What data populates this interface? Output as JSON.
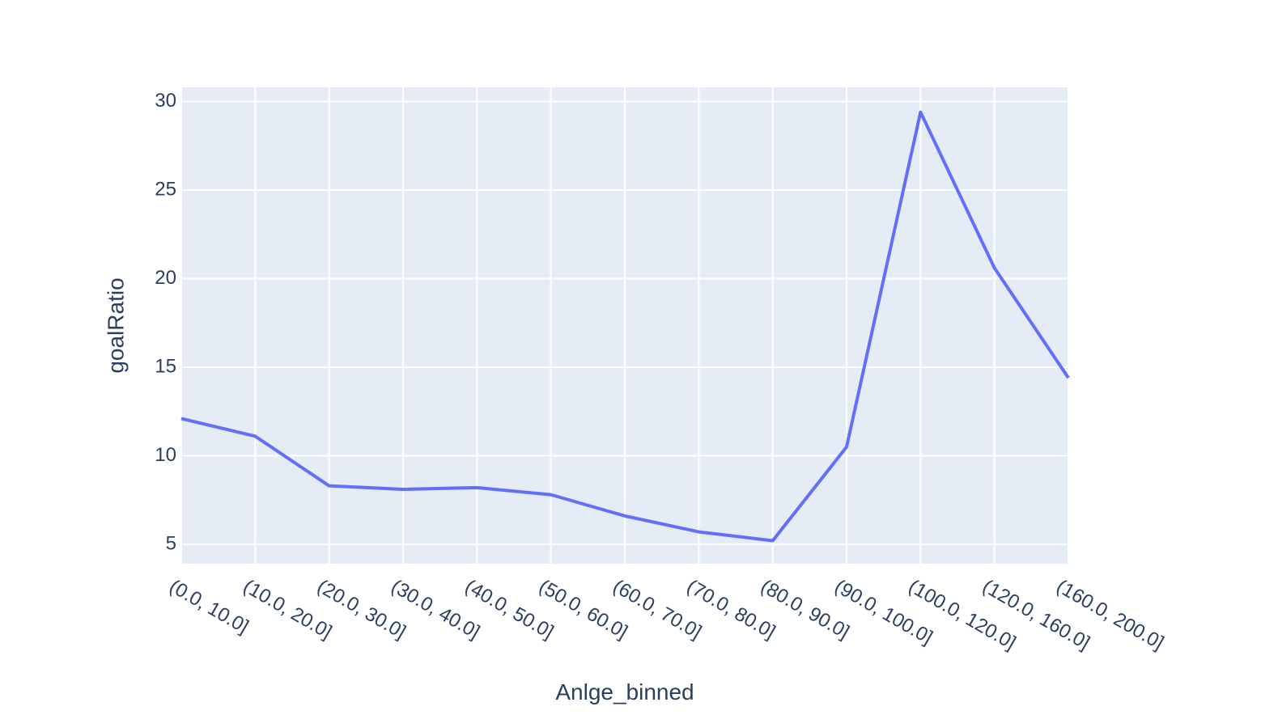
{
  "chart_data": {
    "type": "line",
    "title": "",
    "xlabel": "Anlge_binned",
    "ylabel": "goalRatio",
    "categories": [
      "(0.0, 10.0]",
      "(10.0, 20.0]",
      "(20.0, 30.0]",
      "(30.0, 40.0]",
      "(40.0, 50.0]",
      "(50.0, 60.0]",
      "(60.0, 70.0]",
      "(70.0, 80.0]",
      "(80.0, 90.0]",
      "(90.0, 100.0]",
      "(100.0, 120.0]",
      "(120.0, 160.0]",
      "(160.0, 200.0]"
    ],
    "series": [
      {
        "values": [
          12.1,
          11.1,
          8.3,
          8.1,
          8.2,
          7.8,
          6.6,
          5.7,
          5.2,
          10.5,
          29.4,
          20.6,
          14.4
        ]
      }
    ],
    "yticks": [
      5,
      10,
      15,
      20,
      25,
      30
    ],
    "ylim": [
      3.9,
      30.8
    ],
    "grid": true,
    "legend": "none",
    "colors": {
      "line": "#636efa",
      "plot_background": "#e5ecf6",
      "grid": "#ffffff",
      "text": "#2a3f5f",
      "paper_background": "#ffffff"
    }
  }
}
